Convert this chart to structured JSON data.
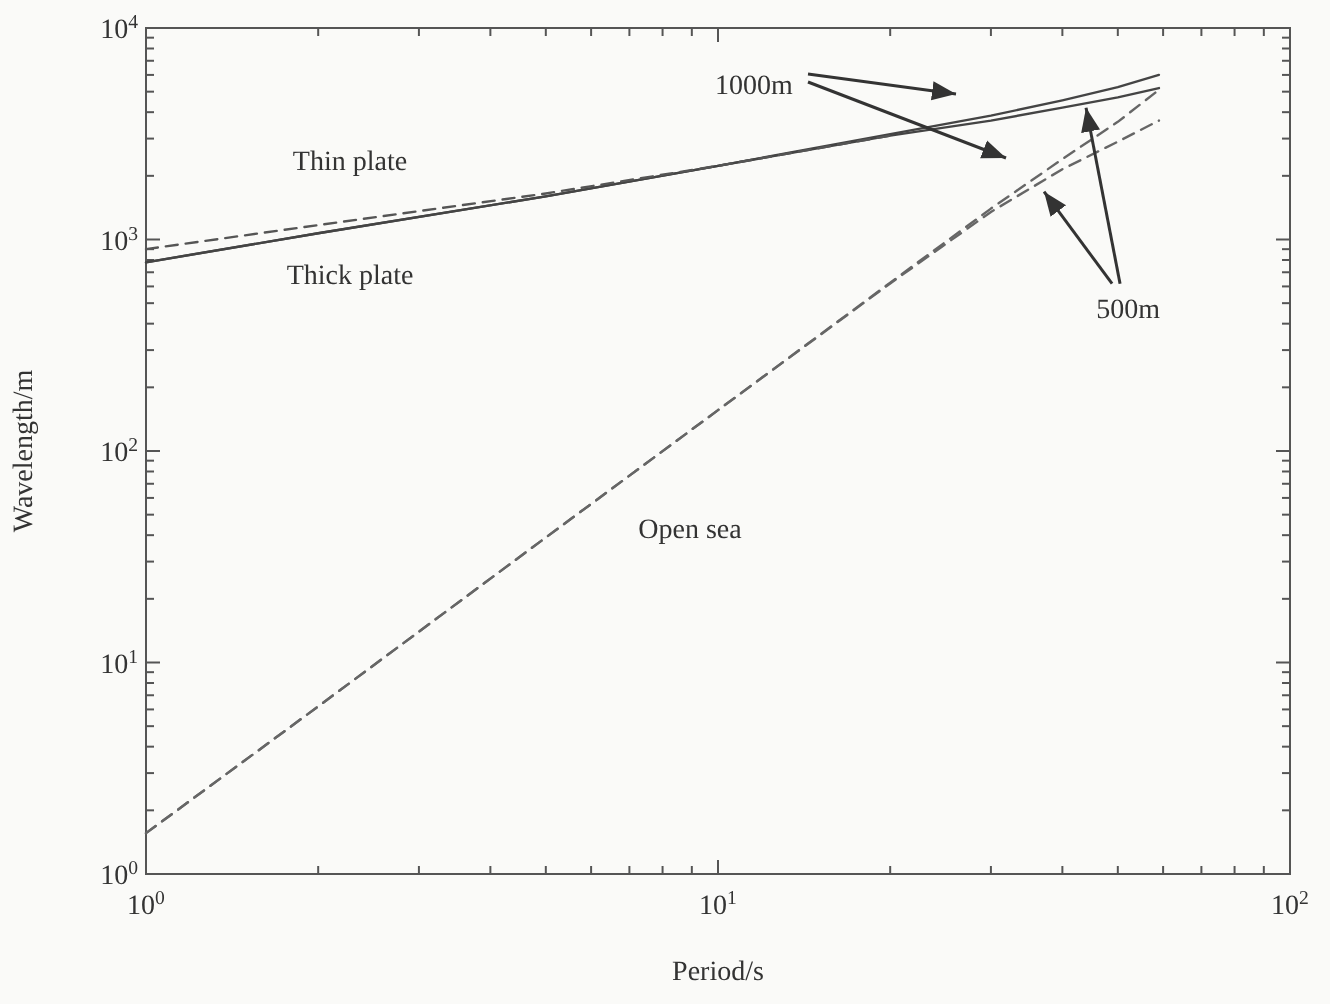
{
  "chart_data": {
    "type": "line",
    "xlabel": "Period/s",
    "ylabel": "Wavelength/m",
    "log": "xy",
    "grid": false,
    "marker": "none",
    "xlim": [
      1,
      100
    ],
    "ylim": [
      1,
      10000
    ],
    "xticks": [
      {
        "value": 1,
        "label": "10$^{0}$"
      },
      {
        "value": 2,
        "label": null
      },
      {
        "value": 3,
        "label": null
      },
      {
        "value": 4,
        "label": null
      },
      {
        "value": 5,
        "label": null
      },
      {
        "value": 6,
        "label": null
      },
      {
        "value": 7,
        "label": null
      },
      {
        "value": 8,
        "label": null
      },
      {
        "value": 9,
        "label": null
      },
      {
        "value": 10,
        "label": "10$^{1}$"
      },
      {
        "value": 20,
        "label": null
      },
      {
        "value": 30,
        "label": null
      },
      {
        "value": 40,
        "label": null
      },
      {
        "value": 50,
        "label": null
      },
      {
        "value": 60,
        "label": null
      },
      {
        "value": 70,
        "label": null
      },
      {
        "value": 80,
        "label": null
      },
      {
        "value": 90,
        "label": null
      },
      {
        "value": 100,
        "label": "10$^{2}$"
      }
    ],
    "yticks": [
      {
        "value": 1,
        "label": "10$^{0}$"
      },
      {
        "value": 2,
        "label": null
      },
      {
        "value": 3,
        "label": null
      },
      {
        "value": 4,
        "label": null
      },
      {
        "value": 5,
        "label": null
      },
      {
        "value": 6,
        "label": null
      },
      {
        "value": 7,
        "label": null
      },
      {
        "value": 8,
        "label": null
      },
      {
        "value": 9,
        "label": null
      },
      {
        "value": 10,
        "label": "10$^{1}$"
      },
      {
        "value": 20,
        "label": null
      },
      {
        "value": 30,
        "label": null
      },
      {
        "value": 40,
        "label": null
      },
      {
        "value": 50,
        "label": null
      },
      {
        "value": 60,
        "label": null
      },
      {
        "value": 70,
        "label": null
      },
      {
        "value": 80,
        "label": null
      },
      {
        "value": 90,
        "label": null
      },
      {
        "value": 100,
        "label": "10$^{2}$"
      },
      {
        "value": 200,
        "label": null
      },
      {
        "value": 300,
        "label": null
      },
      {
        "value": 400,
        "label": null
      },
      {
        "value": 500,
        "label": null
      },
      {
        "value": 600,
        "label": null
      },
      {
        "value": 700,
        "label": null
      },
      {
        "value": 800,
        "label": null
      },
      {
        "value": 900,
        "label": null
      },
      {
        "value": 1000,
        "label": "10$^{3}$"
      },
      {
        "value": 2000,
        "label": null
      },
      {
        "value": 3000,
        "label": null
      },
      {
        "value": 4000,
        "label": null
      },
      {
        "value": 5000,
        "label": null
      },
      {
        "value": 6000,
        "label": null
      },
      {
        "value": 7000,
        "label": null
      },
      {
        "value": 8000,
        "label": null
      },
      {
        "value": 9000,
        "label": null
      },
      {
        "value": 10000,
        "label": "10$^{4}$"
      }
    ],
    "x": [
      1,
      2,
      5,
      10,
      20,
      30,
      40,
      50,
      59
    ],
    "series": [
      {
        "color": "#444444",
        "line_style": "solid",
        "values": [
          780,
          1070,
          1600,
          2230,
          3150,
          3850,
          4550,
          5250,
          6000
        ]
      },
      {
        "color": "#444444",
        "line_style": "solid",
        "values": [
          780,
          1070,
          1600,
          2230,
          3100,
          3650,
          4200,
          4700,
          5200
        ]
      },
      {
        "color": "#555555",
        "line_style": "dashed",
        "values": [
          900,
          1170,
          1650,
          2230,
          3100,
          null,
          null,
          null,
          null
        ]
      },
      {
        "color": "#666666",
        "line_style": "dashed",
        "values": [
          1.56,
          6.2,
          39,
          156,
          625,
          1400,
          2400,
          3600,
          5100
        ]
      },
      {
        "color": "#666666",
        "line_style": "dashed",
        "values": [
          1.56,
          6.2,
          39,
          156,
          620,
          1350,
          2150,
          2900,
          3650
        ]
      }
    ],
    "annotations": [
      "Thin plate",
      "Thick plate",
      "Open sea",
      "1000m",
      {
        "text": "500m",
        "x": 44,
        "y": 4200
      }
    ]
  }
}
